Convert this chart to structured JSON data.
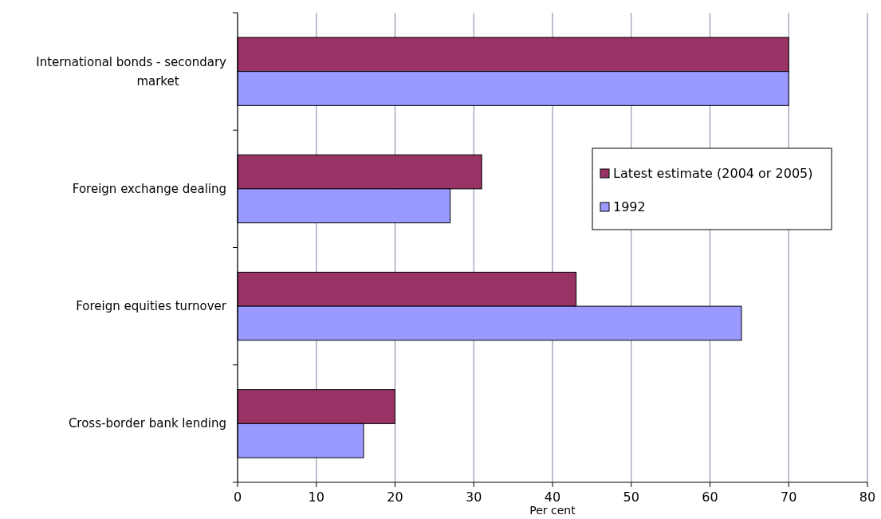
{
  "chart_data": {
    "type": "bar",
    "orientation": "horizontal",
    "xlabel": "Per cent",
    "categories": [
      "International bonds - secondary market",
      "Foreign exchange dealing",
      "Foreign equities turnover",
      "Cross-border bank lending"
    ],
    "series": [
      {
        "name": "Latest estimate (2004 or 2005)",
        "color": "#993366",
        "values": [
          70,
          31,
          43,
          20
        ]
      },
      {
        "name": "1992",
        "color": "#9999ff",
        "values": [
          70,
          27,
          64,
          16
        ]
      }
    ],
    "xlim": [
      0,
      80
    ],
    "xticks": [
      0,
      10,
      20,
      30,
      40,
      50,
      60,
      70,
      80
    ],
    "grid": "x",
    "legend": "right"
  }
}
